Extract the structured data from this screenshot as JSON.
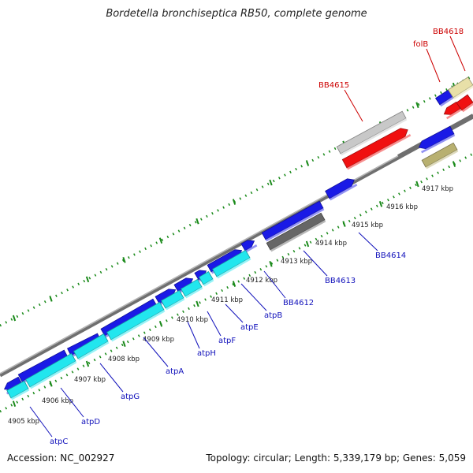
{
  "title": "Bordetella bronchiseptica RB50, complete genome",
  "footer": {
    "accession": "Accession: NC_002927",
    "stats": "Topology: circular; Length: 5,339,179 bp; Genes: 5,059"
  },
  "colors": {
    "backbone": "#7a7a7a",
    "ticks": "#1a8a1a",
    "gene_blue": "#1a1ae6",
    "gene_cyan": "#22e6ee",
    "gene_red": "#f01010",
    "gene_grey": "#c8c8c8",
    "gene_darkgrey": "#666666",
    "gene_khaki": "#b8b070",
    "gene_lightkhaki": "#e8e0a8",
    "label_blue": "#1111bb",
    "label_red": "#cc0000"
  },
  "kbp_labels": [
    "4905 kbp",
    "4906 kbp",
    "4907 kbp",
    "4908 kbp",
    "4909 kbp",
    "4910 kbp",
    "4911 kbp",
    "4912 kbp",
    "4913 kbp",
    "4914 kbp",
    "4915 kbp",
    "4916 kbp",
    "4917 kbp"
  ],
  "gene_labels_blue": [
    "atpC",
    "atpD",
    "atpG",
    "atpA",
    "atpH",
    "atpF",
    "atpE",
    "atpB",
    "BB4612",
    "BB4613",
    "BB4614"
  ],
  "gene_labels_red": [
    "BB4615",
    "folB",
    "BB4618"
  ]
}
